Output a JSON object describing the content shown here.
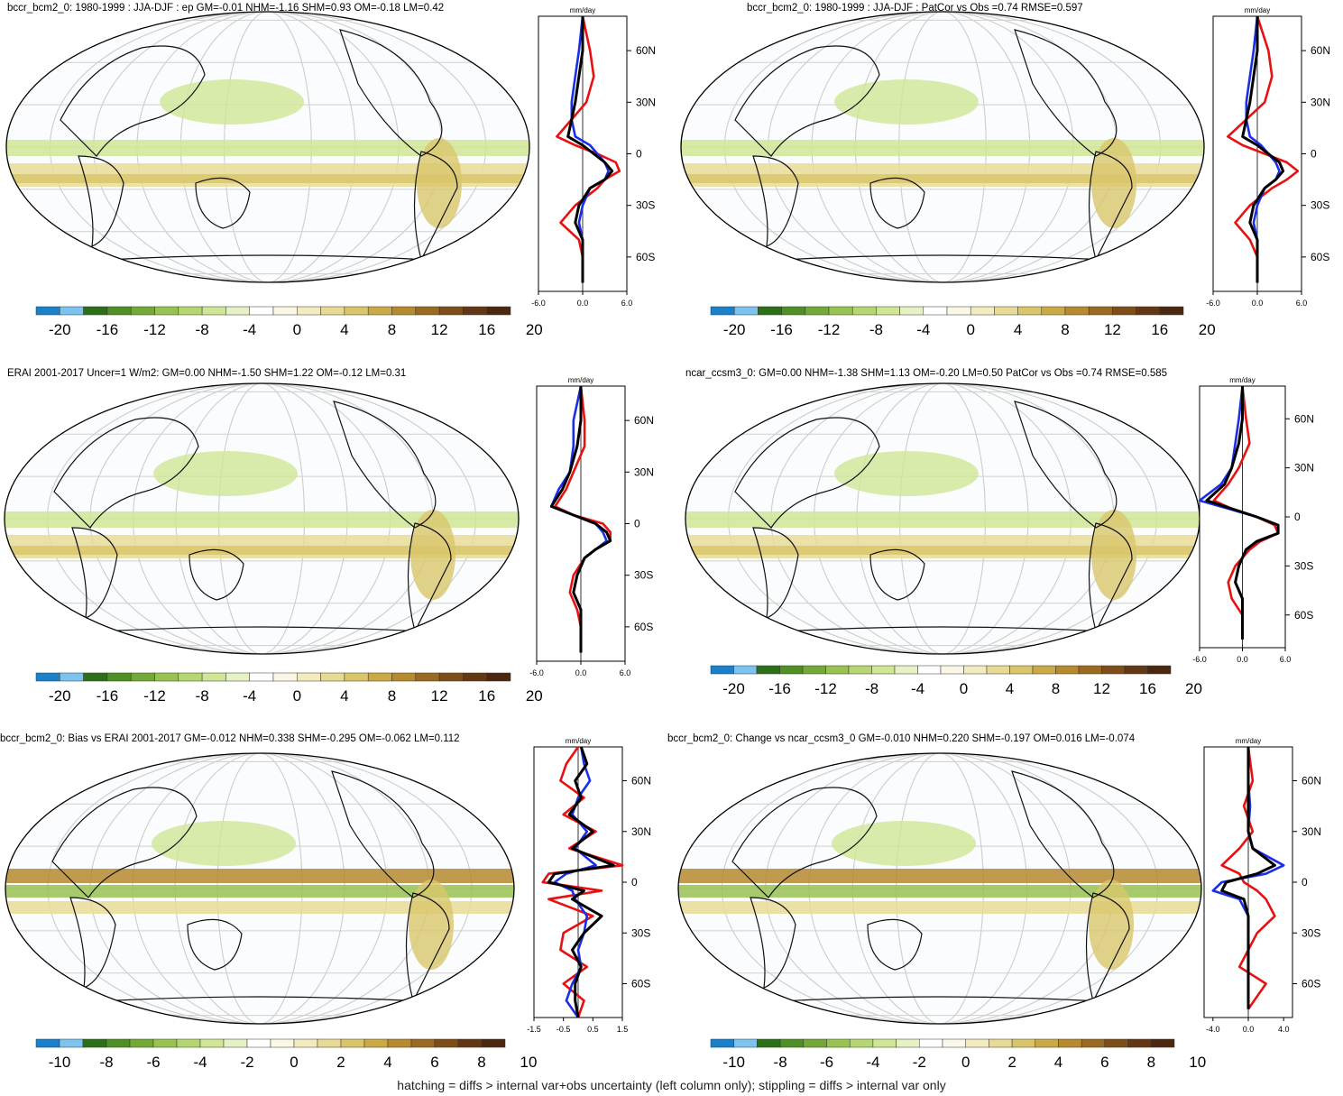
{
  "footnote": "hatching = diffs > internal var+obs uncertainty (left column only); stippling = diffs > internal var only",
  "zonal_unit": "mm/day",
  "lat_labels": [
    "60N",
    "30N",
    "0",
    "30S",
    "60S"
  ],
  "colorbar": {
    "colors": [
      "#1b7fc9",
      "#7cc3ee",
      "#2d6e1b",
      "#4f8f25",
      "#74a93a",
      "#98c252",
      "#b5d672",
      "#cfe696",
      "#e6f2c4",
      "#ffffff",
      "#fbf7e6",
      "#f3ebc0",
      "#e8da96",
      "#d9c56c",
      "#c9aa47",
      "#b58a30",
      "#9a6a22",
      "#7e4e1a",
      "#623715",
      "#4a2710"
    ],
    "ticks_a": [
      "-20",
      "-16",
      "-12",
      "-8",
      "-4",
      "0",
      "4",
      "8",
      "12",
      "16",
      "20"
    ],
    "ticks_b": [
      "-10",
      "-8",
      "-6",
      "-4",
      "-2",
      "0",
      "2",
      "4",
      "6",
      "8",
      "10"
    ]
  },
  "chart_data": [
    {
      "type": "map",
      "title": "bccr_bcm2_0: 1980-1999 : JJA-DJF : ep GM=-0.01 NHM=-1.16 SHM=0.93 OM=-0.18 LM=0.42",
      "zonal_mean": {
        "xticks": [
          "-6.0",
          "0.0",
          "6.0"
        ],
        "xlim": [
          -6,
          6
        ],
        "series": [
          {
            "color": "#e81010",
            "lat": [
              80,
              60,
              45,
              30,
              20,
              10,
              5,
              0,
              -5,
              -10,
              -15,
              -20,
              -30,
              -40,
              -50,
              -60,
              -75
            ],
            "values": [
              0,
              1,
              1.5,
              0.5,
              -1.5,
              -3.5,
              -1,
              2,
              4.5,
              5,
              3,
              2,
              -1,
              -3,
              -0.5,
              0,
              0
            ]
          },
          {
            "color": "#1a2ee8",
            "lat": [
              80,
              60,
              45,
              30,
              20,
              10,
              5,
              0,
              -5,
              -10,
              -15,
              -20,
              -30,
              -40,
              -50,
              -60,
              -75
            ],
            "values": [
              0,
              -0.5,
              -1,
              -1.5,
              -1.5,
              -1,
              1,
              2,
              3,
              3.5,
              3,
              1,
              0,
              -0.5,
              0,
              0,
              0
            ]
          },
          {
            "color": "#000000",
            "lat": [
              80,
              60,
              45,
              30,
              20,
              10,
              5,
              0,
              -5,
              -10,
              -15,
              -20,
              -30,
              -40,
              -50,
              -60,
              -75
            ],
            "values": [
              0,
              0,
              -0.5,
              -1,
              -1.5,
              -2,
              0,
              1.5,
              3,
              4,
              3,
              1,
              -0.5,
              -1,
              0,
              0,
              0
            ]
          }
        ]
      }
    },
    {
      "type": "map",
      "title": "bccr_bcm2_0: 1980-1999 : JJA-DJF : PatCor vs Obs =0.74 RMSE=0.597",
      "zonal_mean": {
        "xticks": [
          "-6.0",
          "0.0",
          "6.0"
        ],
        "xlim": [
          -6,
          6
        ],
        "series": [
          {
            "color": "#e81010",
            "lat": [
              80,
              60,
              45,
              30,
              20,
              10,
              5,
              0,
              -5,
              -10,
              -15,
              -20,
              -30,
              -40,
              -50,
              -60,
              -75
            ],
            "values": [
              0,
              1.5,
              2,
              1,
              -1.5,
              -4,
              -2,
              1,
              4,
              5.5,
              4,
              2,
              -1,
              -3,
              -1,
              0,
              0
            ]
          },
          {
            "color": "#1a2ee8",
            "lat": [
              80,
              60,
              45,
              30,
              20,
              10,
              5,
              0,
              -5,
              -10,
              -15,
              -20,
              -30,
              -40,
              -50,
              -60,
              -75
            ],
            "values": [
              0,
              -0.5,
              -1,
              -1.5,
              -1.5,
              -1,
              0.5,
              1.5,
              2.5,
              3,
              2.5,
              1,
              0,
              -0.5,
              0,
              0,
              0
            ]
          },
          {
            "color": "#000000",
            "lat": [
              80,
              60,
              45,
              30,
              20,
              10,
              5,
              0,
              -5,
              -10,
              -15,
              -20,
              -30,
              -40,
              -50,
              -60,
              -75
            ],
            "values": [
              0,
              0,
              -0.5,
              -1,
              -1.5,
              -2,
              0,
              1.5,
              3,
              3.5,
              2.5,
              1,
              -0.5,
              -1,
              0,
              0,
              0
            ]
          }
        ]
      }
    },
    {
      "type": "map",
      "title": "ERAI 2001-2017 Uncer=1 W/m2: GM=0.00 NHM=-1.50 SHM=1.22 OM=-0.12 LM=0.31",
      "zonal_mean": {
        "xticks": [
          "-6.0",
          "0.0",
          "6.0"
        ],
        "xlim": [
          -6,
          6
        ],
        "series": [
          {
            "color": "#e81010",
            "lat": [
              80,
              60,
              45,
              30,
              20,
              10,
              5,
              0,
              -5,
              -10,
              -15,
              -20,
              -30,
              -40,
              -50,
              -60,
              -75
            ],
            "values": [
              0,
              0.5,
              0.5,
              -1,
              -2,
              -3.5,
              -1,
              3,
              4,
              4,
              2,
              0.5,
              -1,
              -1.5,
              -0.5,
              0,
              0
            ]
          },
          {
            "color": "#1a2ee8",
            "lat": [
              80,
              60,
              45,
              30,
              20,
              10,
              5,
              0,
              -5,
              -10,
              -15,
              -20,
              -30,
              -40,
              -50,
              -60,
              -75
            ],
            "values": [
              0,
              -1,
              -1,
              -1.5,
              -3,
              -4,
              -1,
              2,
              3,
              3.5,
              2,
              0.5,
              -0.5,
              -1,
              0,
              0,
              0
            ]
          },
          {
            "color": "#000000",
            "lat": [
              80,
              60,
              45,
              30,
              20,
              10,
              5,
              0,
              -5,
              -10,
              -15,
              -20,
              -30,
              -40,
              -50,
              -60,
              -75
            ],
            "values": [
              0,
              0,
              -0.5,
              -1.5,
              -2.5,
              -4,
              -1,
              2,
              3.5,
              4,
              2,
              0.5,
              -0.5,
              -1,
              0,
              0,
              0
            ]
          }
        ]
      }
    },
    {
      "type": "map",
      "title": "ncar_ccsm3_0: GM=0.00 NHM=-1.38 SHM=1.13 OM=-0.20 LM=0.50 PatCor vs Obs =0.74 RMSE=0.585",
      "zonal_mean": {
        "xticks": [
          "-6.0",
          "0.0",
          "6.0"
        ],
        "xlim": [
          -6,
          6
        ],
        "series": [
          {
            "color": "#e81010",
            "lat": [
              80,
              60,
              45,
              30,
              20,
              10,
              5,
              0,
              -5,
              -10,
              -15,
              -20,
              -30,
              -40,
              -50,
              -60,
              -75
            ],
            "values": [
              0,
              0.5,
              1,
              -0.5,
              -2,
              -4,
              -1.5,
              2,
              4.5,
              5,
              2.5,
              1,
              -1,
              -2,
              -1.5,
              0,
              0
            ]
          },
          {
            "color": "#1a2ee8",
            "lat": [
              80,
              60,
              45,
              30,
              20,
              10,
              5,
              0,
              -5,
              -10,
              -15,
              -20,
              -30,
              -40,
              -50,
              -60,
              -75
            ],
            "values": [
              0,
              -0.5,
              -1,
              -1.5,
              -3,
              -6,
              -2,
              2,
              5,
              5,
              2,
              0.5,
              -0.5,
              -1,
              0,
              0,
              0
            ]
          },
          {
            "color": "#000000",
            "lat": [
              80,
              60,
              45,
              30,
              20,
              10,
              5,
              0,
              -5,
              -10,
              -15,
              -20,
              -30,
              -40,
              -50,
              -60,
              -75
            ],
            "values": [
              0,
              0,
              -0.5,
              -1.5,
              -2.5,
              -5,
              -1.5,
              2,
              5,
              5,
              2,
              0.5,
              -0.5,
              -1,
              0,
              0,
              0
            ]
          }
        ]
      }
    },
    {
      "type": "map",
      "title": "bccr_bcm2_0: Bias vs ERAI 2001-2017 GM=-0.012 NHM=0.338 SHM=-0.295 OM=-0.062 LM=0.112",
      "zonal_mean": {
        "xticks": [
          "-1.5",
          "-0.5",
          "0.5",
          "1.5"
        ],
        "xlim": [
          -1.5,
          1.5
        ],
        "series": [
          {
            "color": "#e81010",
            "lat": [
              80,
              70,
              60,
              50,
              40,
              30,
              20,
              10,
              5,
              0,
              -5,
              -10,
              -20,
              -30,
              -40,
              -50,
              -60,
              -70,
              -80
            ],
            "values": [
              0,
              -0.4,
              -0.6,
              0.2,
              -0.5,
              0.6,
              -0.3,
              1.5,
              -1,
              -1.2,
              0.8,
              -1,
              0.5,
              -0.5,
              -0.6,
              0.3,
              -0.5,
              0.2,
              0
            ]
          },
          {
            "color": "#1a2ee8",
            "lat": [
              80,
              70,
              60,
              50,
              40,
              30,
              20,
              10,
              5,
              0,
              -5,
              -10,
              -20,
              -30,
              -40,
              -50,
              -60,
              -70,
              -80
            ],
            "values": [
              0.1,
              0.2,
              0.4,
              0,
              -0.2,
              0.3,
              -0.1,
              0.6,
              -0.4,
              -0.8,
              -0.2,
              -0.1,
              0.3,
              0.2,
              0,
              0.1,
              -0.2,
              -0.4,
              0
            ]
          },
          {
            "color": "#000000",
            "lat": [
              80,
              70,
              60,
              50,
              40,
              30,
              20,
              10,
              5,
              0,
              -5,
              -10,
              -20,
              -30,
              -40,
              -50,
              -60,
              -70,
              -80
            ],
            "values": [
              0.1,
              0.3,
              -0.1,
              0.1,
              -0.3,
              0.5,
              -0.2,
              1.2,
              -0.8,
              -1,
              0.2,
              -0.2,
              0.8,
              0.2,
              -0.2,
              0.1,
              -0.1,
              -0.1,
              0
            ]
          }
        ]
      }
    },
    {
      "type": "map",
      "title": "bccr_bcm2_0: Change vs ncar_ccsm3_0 GM=-0.010 NHM=0.220 SHM=-0.197 OM=0.016 LM=-0.074",
      "zonal_mean": {
        "xticks": [
          "-4.0",
          "0.0",
          "4.0"
        ],
        "xlim": [
          -5,
          5
        ],
        "series": [
          {
            "color": "#e81010",
            "lat": [
              80,
              60,
              45,
              30,
              20,
              10,
              5,
              0,
              -5,
              -10,
              -20,
              -30,
              -40,
              -50,
              -60,
              -75
            ],
            "values": [
              0,
              0.5,
              -0.5,
              0.5,
              -1,
              -3,
              -1,
              -0.5,
              1,
              2,
              3,
              1,
              0,
              -1,
              2,
              0
            ]
          },
          {
            "color": "#1a2ee8",
            "lat": [
              80,
              60,
              45,
              30,
              20,
              10,
              5,
              0,
              -5,
              -10,
              -20,
              -30,
              -40,
              -50,
              -60,
              -75
            ],
            "values": [
              0,
              0,
              0.2,
              0,
              0.5,
              4,
              2,
              -3,
              -4,
              -1,
              0,
              0,
              0,
              0,
              0,
              0
            ]
          },
          {
            "color": "#000000",
            "lat": [
              80,
              60,
              45,
              30,
              20,
              10,
              5,
              0,
              -5,
              -10,
              -20,
              -30,
              -40,
              -50,
              -60,
              -75
            ],
            "values": [
              0,
              0,
              0,
              0,
              0.5,
              3,
              1,
              -2.5,
              -3,
              -0.5,
              0,
              0,
              0,
              0,
              0,
              0
            ]
          }
        ]
      }
    }
  ]
}
